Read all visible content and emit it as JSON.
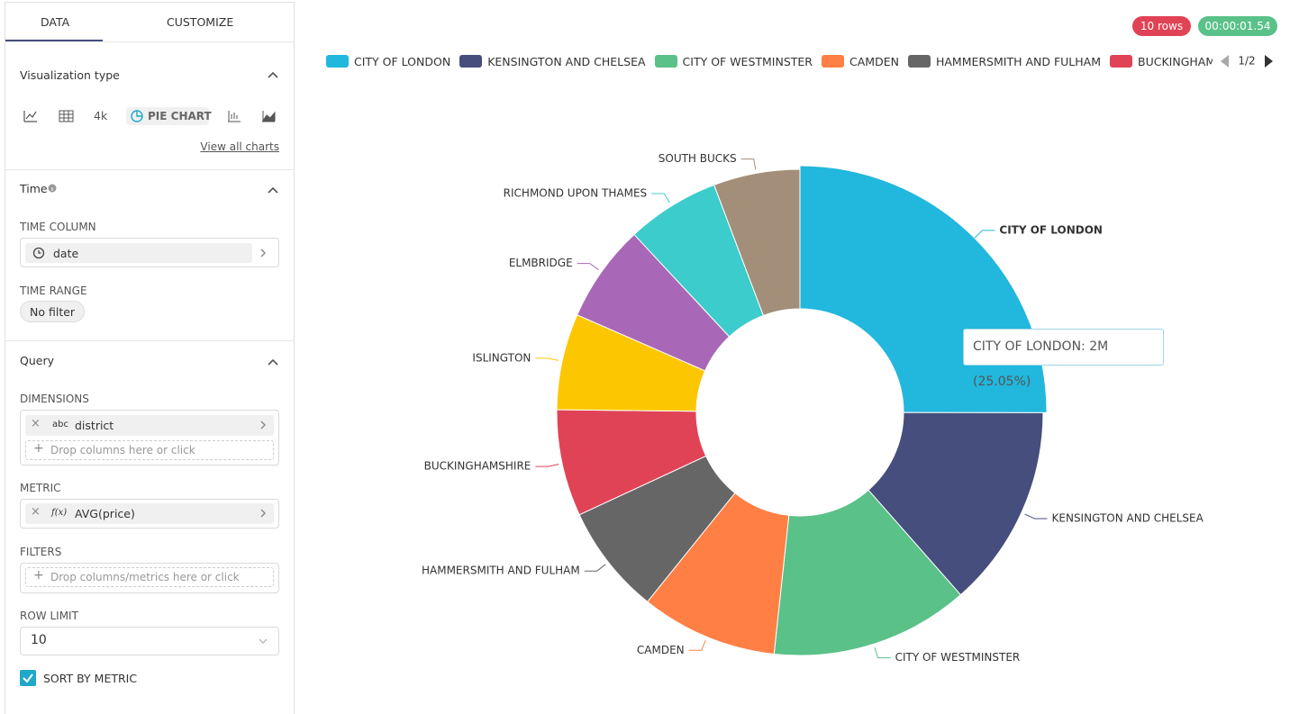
{
  "tabs": [
    "DATA",
    "CUSTOMIZE"
  ],
  "sidebar": {
    "viz": {
      "title": "Visualization type",
      "options": [
        "4k",
        "PIE CHART"
      ],
      "link": "View all charts"
    },
    "time": {
      "title": "Time",
      "time_column_label": "TIME COLUMN",
      "time_column": "date",
      "time_range_label": "TIME RANGE",
      "time_range": "No filter"
    },
    "query": {
      "title": "Query",
      "dimensions_label": "DIMENSIONS",
      "dimension_type": "abc",
      "dimension": "district",
      "dimension_drop": "Drop columns here or click",
      "metric_label": "METRIC",
      "metric_fx": "f(x)",
      "metric": "AVG(price)",
      "filters_label": "FILTERS",
      "filters_drop": "Drop columns/metrics here or click",
      "row_limit_label": "ROW LIMIT",
      "row_limit": 10,
      "sort_by_metric": "SORT BY METRIC"
    }
  },
  "status": {
    "rows": "10 rows",
    "timer": "00:00:01.54"
  },
  "chart_data": {
    "type": "pie",
    "donut": true,
    "categories": [
      "CITY OF LONDON",
      "KENSINGTON AND CHELSEA",
      "CITY OF WESTMINSTER",
      "CAMDEN",
      "HAMMERSMITH AND FULHAM",
      "BUCKINGHAMSHIRE",
      "ISLINGTON",
      "ELMBRIDGE",
      "RICHMOND UPON THAMES",
      "SOUTH BUCKS"
    ],
    "values": [
      25.05,
      13.5,
      13.2,
      9.1,
      7.3,
      7.1,
      6.4,
      6.5,
      6.2,
      5.75
    ],
    "colors": [
      "#22b7dd",
      "#454e7c",
      "#5ac189",
      "#ff7f44",
      "#666666",
      "#e04355",
      "#fcc700",
      "#a868b7",
      "#3ccccb",
      "#a38f79"
    ],
    "legend_page": "1/2",
    "tooltip": "CITY OF LONDON: 2M (25.05%)"
  }
}
